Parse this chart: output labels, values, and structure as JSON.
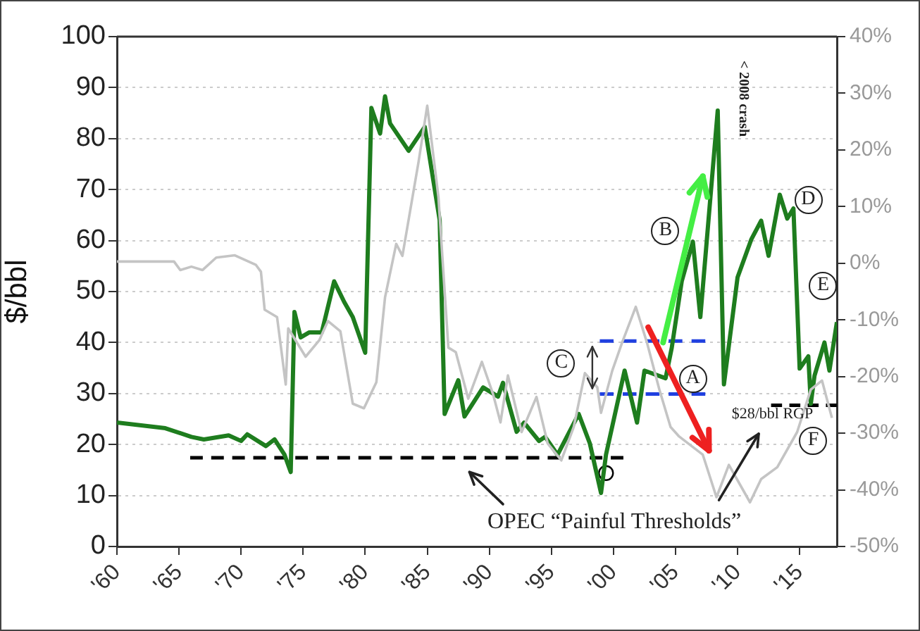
{
  "chart_data": {
    "type": "line",
    "ylabel": "$/bbl",
    "xlim": [
      1960,
      2018
    ],
    "xticks": [
      {
        "value": 1960,
        "label": "'60"
      },
      {
        "value": 1965,
        "label": "'65"
      },
      {
        "value": 1970,
        "label": "'70"
      },
      {
        "value": 1975,
        "label": "'75"
      },
      {
        "value": 1980,
        "label": "'80"
      },
      {
        "value": 1985,
        "label": "'85"
      },
      {
        "value": 1990,
        "label": "'90"
      },
      {
        "value": 1995,
        "label": "'95"
      },
      {
        "value": 2000,
        "label": "'00"
      },
      {
        "value": 2005,
        "label": "'05"
      },
      {
        "value": 2010,
        "label": "'10"
      },
      {
        "value": 2015,
        "label": "'15"
      }
    ],
    "ylim": [
      0,
      100
    ],
    "yticks": [
      0,
      10,
      20,
      30,
      40,
      50,
      60,
      70,
      80,
      90,
      100
    ],
    "y2lim": [
      -50,
      40
    ],
    "y2ticks": [
      {
        "value": -50,
        "label": "-50%"
      },
      {
        "value": -40,
        "label": "-40%"
      },
      {
        "value": -30,
        "label": "-30%"
      },
      {
        "value": -20,
        "label": "-20%"
      },
      {
        "value": -10,
        "label": "-10%"
      },
      {
        "value": 0,
        "label": "0%"
      },
      {
        "value": 10,
        "label": "10%"
      },
      {
        "value": 20,
        "label": "20%"
      },
      {
        "value": 30,
        "label": "30%"
      },
      {
        "value": 40,
        "label": "40%"
      }
    ],
    "grid": "y",
    "legend": false,
    "series": [
      {
        "axis": "y2",
        "color": "#c4c4c4",
        "line_style": "solid",
        "marker": "none",
        "x": [
          1960,
          1964.6,
          1965.1,
          1966,
          1966.9,
          1968,
          1969.5,
          1971.2,
          1971.6,
          1971.9,
          1972.9,
          1973.6,
          1973.8,
          1975.2,
          1976.3,
          1977,
          1978,
          1979,
          1979.9,
          1980.9,
          1981.6,
          1982.5,
          1983,
          1984.3,
          1985,
          1985.9,
          1986.7,
          1987.3,
          1988.3,
          1989.4,
          1990.3,
          1990.9,
          1991.5,
          1992.6,
          1993.8,
          1994.7,
          1995.8,
          1996.8,
          1997.7,
          1998.7,
          1999,
          1999.9,
          2000.7,
          2001.8,
          2002.7,
          2003.7,
          2004.6,
          2005.3,
          2007.2,
          2008.3,
          2009.3,
          2011,
          2011.9,
          2013.2,
          2014.8,
          2015.9,
          2016.8,
          2017.6
        ],
        "values": [
          0.3,
          0.3,
          -1.2,
          -0.6,
          -1.2,
          1,
          1.4,
          -0.3,
          -1.5,
          -8.2,
          -9.5,
          -21.4,
          -11.5,
          -16.5,
          -13.6,
          -10.2,
          -12,
          -24.8,
          -25.6,
          -21,
          -6,
          3.4,
          1.3,
          17.9,
          27.8,
          11.7,
          -14.9,
          -15.7,
          -23.9,
          -17.4,
          -23.1,
          -28.1,
          -19.8,
          -29.8,
          -23.6,
          -31.8,
          -34.8,
          -28.9,
          -19.4,
          -21.9,
          -26.4,
          -19,
          -14,
          -7.7,
          -14,
          -22.3,
          -28.9,
          -30.6,
          -33.8,
          -41.3,
          -35.6,
          -42.2,
          -38.1,
          -36,
          -29.8,
          -22.3,
          -20.7,
          -27.3
        ]
      },
      {
        "color": "#1e7d1e",
        "line_style": "solid",
        "marker": "none",
        "x": [
          1960,
          1963.9,
          1966,
          1967,
          1969,
          1970,
          1970.5,
          1972,
          1972.7,
          1973.5,
          1974,
          1974.3,
          1974.8,
          1975.5,
          1976.5,
          1977.5,
          1978.3,
          1979,
          1980,
          1980.5,
          1981.2,
          1981.6,
          1982,
          1983.5,
          1984.8,
          1986,
          1986.4,
          1987.5,
          1988,
          1989.5,
          1990.7,
          1991.1,
          1992.2,
          1992.8,
          1994,
          1994.5,
          1995.5,
          1997.2,
          1998.1,
          1999,
          1999.4,
          2000.9,
          2001.9,
          2002.5,
          2004.2,
          2004.7,
          2005.5,
          2006.4,
          2007,
          2008.4,
          2008.9,
          2010,
          2011.1,
          2011.9,
          2012.5,
          2013.4,
          2014,
          2014.5,
          2015,
          2015.7,
          2015.9,
          2016.2,
          2017,
          2017.4,
          2018
        ],
        "values": [
          24.3,
          23.2,
          21.5,
          21,
          21.8,
          20.7,
          22,
          19.7,
          21,
          18,
          14.6,
          46,
          41,
          42,
          42,
          52,
          48,
          45,
          38,
          86,
          81,
          88.3,
          83,
          77.6,
          82.3,
          64,
          26,
          32.6,
          25.5,
          31.2,
          29.4,
          32.1,
          22.5,
          24.3,
          20.7,
          21.5,
          18,
          26,
          20.2,
          10.5,
          18,
          34.5,
          24.3,
          34.5,
          33,
          39,
          52,
          59.8,
          45,
          85.5,
          31.8,
          52.8,
          60.2,
          63.9,
          57,
          69,
          64.3,
          66.3,
          34.9,
          37.3,
          28,
          33.5,
          40,
          34.5,
          44
        ]
      },
      {
        "type": "line",
        "color": "#000000",
        "line_style": "dashed",
        "marker": "none",
        "x": [
          1965.9,
          2000.8
        ],
        "values": [
          17.4,
          17.4
        ]
      },
      {
        "type": "line",
        "color": "#2040e0",
        "line_style": "dashed",
        "marker": "none",
        "x": [
          1998.9,
          2007.4
        ],
        "values": [
          40.3,
          40.3
        ]
      },
      {
        "type": "line",
        "color": "#2040e0",
        "line_style": "dashed",
        "marker": "none",
        "x": [
          1998.9,
          2007.4
        ],
        "values": [
          29.9,
          29.9
        ]
      },
      {
        "type": "line",
        "color": "#000000",
        "line_style": "dashed",
        "marker": "none",
        "x": [
          2012.7,
          2018
        ],
        "values": [
          27.7,
          27.7
        ]
      },
      {
        "type": "scatter",
        "color": "#ffffff",
        "marker": "circle",
        "x": [
          1999.4
        ],
        "values": [
          14.4
        ]
      }
    ],
    "annotations": [
      {
        "text": "A",
        "x": 2006.4,
        "y": 33
      },
      {
        "text": "B",
        "x": 2004.2,
        "y": 62
      },
      {
        "text": "C",
        "x": 1995.8,
        "y": 35.8
      },
      {
        "text": "D",
        "x": 2015.7,
        "y": 68
      },
      {
        "text": "E",
        "x": 2016.9,
        "y": 51
      },
      {
        "text": "F",
        "x": 2016.1,
        "y": 20.6
      },
      "< 2008 crash",
      {
        "text": "$28/bbl RGP",
        "x": 2013.5,
        "y": 27.7
      },
      "OPEC “Painful Thresholds”"
    ]
  }
}
